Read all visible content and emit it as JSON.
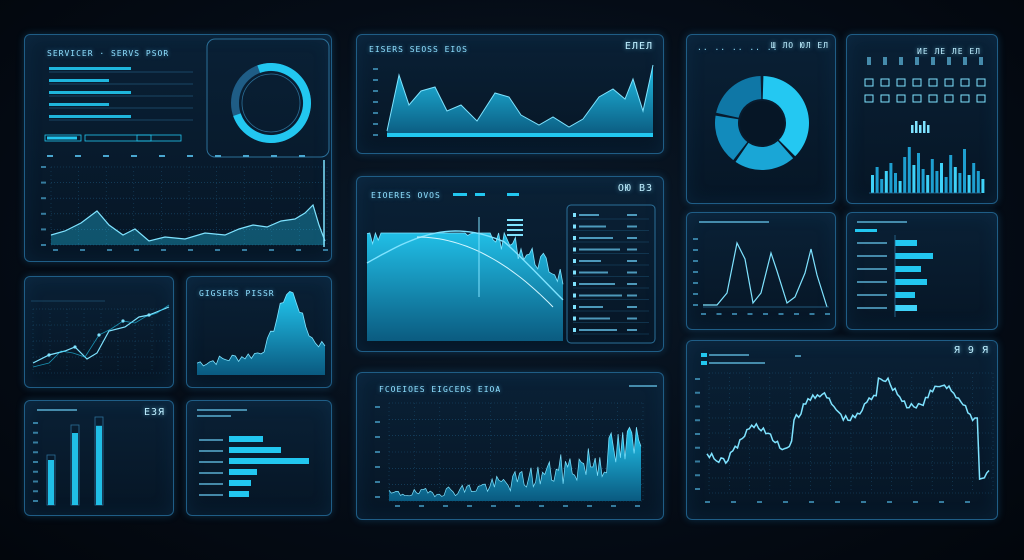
{
  "colors": {
    "accent": "#22c7f0",
    "accent_light": "#7fe3ff",
    "border": "#1f5d86",
    "bg": "#050c16"
  },
  "panels": {
    "top_left": {
      "title": "SERVICER · SERVS PSOR"
    },
    "area_mountain": {
      "title": "EISERS SEOSS EIOS",
      "code": "ЕЛЕЛ"
    },
    "donut": {
      "title": "·· ·· ·· ·· ··",
      "code": "Ш ЛО ЮЛ ЕЛ"
    },
    "bars_top_right": {
      "code": "ИЕ ЛЕ ЛЕ ЕЛ"
    },
    "mid_left_line": {},
    "mid_left_area": {
      "title": "GIGSERS PISSR"
    },
    "center": {
      "title": "EIOERES OVOS",
      "code": "OЮ ВЗ"
    },
    "mid_right_line": {},
    "hbar_right": {},
    "bot_left_bars": {
      "code": "ЕЗЯ"
    },
    "bot_left_hbar": {},
    "bot_center": {
      "title": "FCOEIOES EIGCEDS EIOA"
    },
    "bot_right": {
      "code": "Я 9 Я"
    }
  }
}
